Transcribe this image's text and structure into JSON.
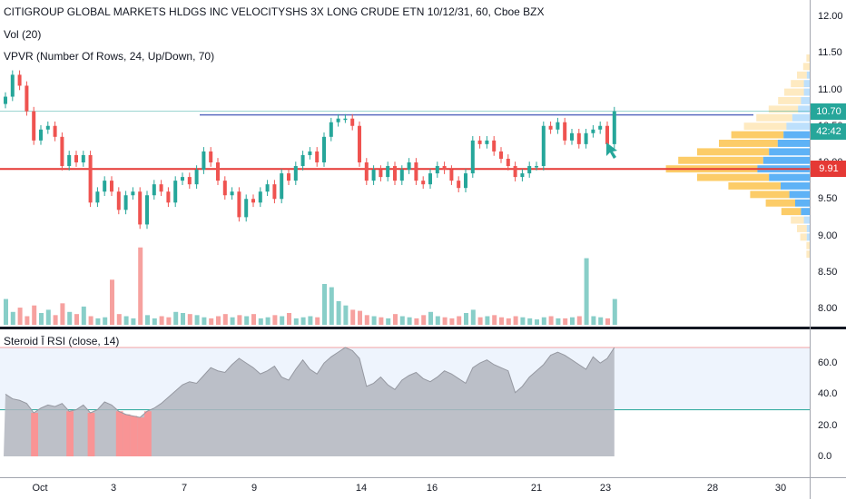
{
  "header": {
    "symbol_title": "CITIGROUP GLOBAL MARKETS HLDGS INC VELOCITYSHS 3X LONG CRUDE ETN 10/12/31, 60, Cboe BZX",
    "vol_legend": "Vol (20)",
    "vpvr_legend": "VPVR (Number Of Rows, 24, Up/Down, 70)",
    "rsi_legend": "Steroid Ī RSI (close, 14)"
  },
  "price_axis": {
    "ticks": [
      "12.00",
      "11.50",
      "11.00",
      "10.50",
      "10.00",
      "9.50",
      "9.00",
      "8.50",
      "8.00"
    ],
    "last_price": "10.70",
    "countdown": "42:42",
    "level_price": "9.91"
  },
  "rsi_axis": {
    "ticks": [
      "60.0",
      "40.0",
      "20.0",
      "0.0"
    ]
  },
  "time_axis": {
    "ticks": [
      "Oct",
      "3",
      "7",
      "9",
      "14",
      "16",
      "21",
      "23",
      "28",
      "30"
    ]
  },
  "colors": {
    "up": "#26a69a",
    "down": "#ef5350",
    "level": "#e53935",
    "resistance": "#5c6bc0",
    "vp_up": "#42a5f5",
    "vp_down": "#fbc34d",
    "rsi_fill": "#b2b5be",
    "rsi_oversold": "#ff8f8f",
    "rsi_band": "#e3ecfb"
  },
  "chart_data": [
    {
      "type": "candlestick",
      "title": "",
      "ylim": [
        7.8,
        12.2
      ],
      "close": [
        10.9,
        11.2,
        11.05,
        10.7,
        10.3,
        10.45,
        10.5,
        10.35,
        9.95,
        10.1,
        10.0,
        10.1,
        9.45,
        9.6,
        9.75,
        9.6,
        9.35,
        9.55,
        9.6,
        9.15,
        9.55,
        9.7,
        9.6,
        9.45,
        9.75,
        9.8,
        9.7,
        9.9,
        10.15,
        10.0,
        9.75,
        9.55,
        9.6,
        9.25,
        9.5,
        9.45,
        9.6,
        9.7,
        9.5,
        9.85,
        9.75,
        9.95,
        10.1,
        10.15,
        10.0,
        10.35,
        10.55,
        10.6,
        10.6,
        10.5,
        10.0,
        9.75,
        9.9,
        9.8,
        9.95,
        9.75,
        9.9,
        10.0,
        9.75,
        9.7,
        9.85,
        9.95,
        9.9,
        9.75,
        9.65,
        9.85,
        10.3,
        10.25,
        10.3,
        10.15,
        10.05,
        9.95,
        9.8,
        9.85,
        9.95,
        9.95,
        10.5,
        10.45,
        10.55,
        10.3,
        10.4,
        10.25,
        10.4,
        10.45,
        10.5,
        10.25,
        10.7
      ],
      "volume": [
        120,
        60,
        80,
        40,
        90,
        55,
        70,
        45,
        100,
        60,
        50,
        85,
        40,
        30,
        35,
        210,
        50,
        40,
        30,
        360,
        45,
        30,
        40,
        35,
        60,
        55,
        50,
        45,
        35,
        30,
        40,
        50,
        35,
        45,
        40,
        50,
        30,
        35,
        45,
        40,
        55,
        30,
        35,
        40,
        35,
        190,
        175,
        110,
        90,
        70,
        65,
        45,
        40,
        35,
        30,
        50,
        40,
        35,
        30,
        45,
        60,
        40,
        35,
        30,
        40,
        55,
        70,
        35,
        40,
        45,
        35,
        30,
        40,
        35,
        30,
        25,
        35,
        40,
        30,
        30,
        35,
        40,
        310,
        40,
        35,
        30,
        120
      ],
      "series": [
        {
          "name": "Vol",
          "values": []
        }
      ]
    },
    {
      "type": "area",
      "title": "",
      "ylim": [
        -10,
        75
      ],
      "values": [
        40,
        37,
        36,
        34,
        28,
        31,
        33,
        32,
        34,
        29,
        30,
        33,
        28,
        30,
        35,
        33,
        29,
        27,
        26,
        25,
        29,
        31,
        34,
        38,
        42,
        46,
        48,
        47,
        52,
        57,
        55,
        54,
        59,
        63,
        60,
        57,
        53,
        55,
        58,
        51,
        49,
        56,
        62,
        56,
        53,
        60,
        64,
        67,
        70,
        68,
        63,
        45,
        47,
        51,
        46,
        43,
        49,
        52,
        54,
        50,
        48,
        51,
        55,
        53,
        50,
        47,
        57,
        60,
        62,
        59,
        57,
        55,
        41,
        45,
        51,
        55,
        59,
        65,
        67,
        65,
        62,
        59,
        56,
        64,
        60,
        63,
        70
      ],
      "bands": [
        30,
        70
      ]
    }
  ]
}
